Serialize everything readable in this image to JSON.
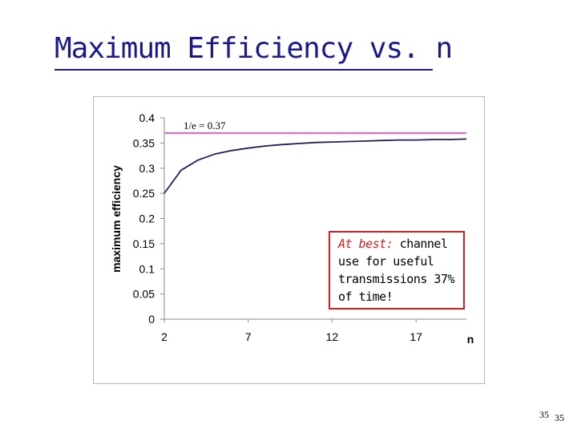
{
  "slide": {
    "title": "Maximum Efficiency vs. n",
    "callout": {
      "emphasis": "At best:",
      "text": " channel use for useful transmissions 37% of time!"
    },
    "page_numbers": [
      "35",
      "35"
    ]
  },
  "colors": {
    "title": "#1a1a8c",
    "curve": "#1f1f5e",
    "reference_line": "#e060d8",
    "callout_border": "#cc1f1f"
  },
  "chart_data": {
    "type": "line",
    "title": "",
    "xlabel": "n",
    "ylabel": "maximum efficiency",
    "xlim": [
      2,
      20
    ],
    "ylim": [
      0,
      0.4
    ],
    "x_ticks": [
      "2",
      "7",
      "12",
      "17"
    ],
    "y_ticks": [
      "0",
      "0.05",
      "0.1",
      "0.15",
      "0.2",
      "0.25",
      "0.3",
      "0.35",
      "0.4"
    ],
    "grid": false,
    "legend": "none",
    "series": [
      {
        "x": [
          2,
          3,
          4,
          5,
          6,
          7,
          8,
          9,
          10,
          11,
          12,
          13,
          14,
          15,
          16,
          17,
          18,
          19,
          20
        ],
        "values": [
          0.25,
          0.296,
          0.316,
          0.328,
          0.335,
          0.34,
          0.344,
          0.347,
          0.349,
          0.351,
          0.352,
          0.353,
          0.354,
          0.355,
          0.356,
          0.356,
          0.357,
          0.357,
          0.358
        ]
      }
    ],
    "reference_line": {
      "y": 0.37,
      "label": "1/e = 0.37"
    }
  }
}
